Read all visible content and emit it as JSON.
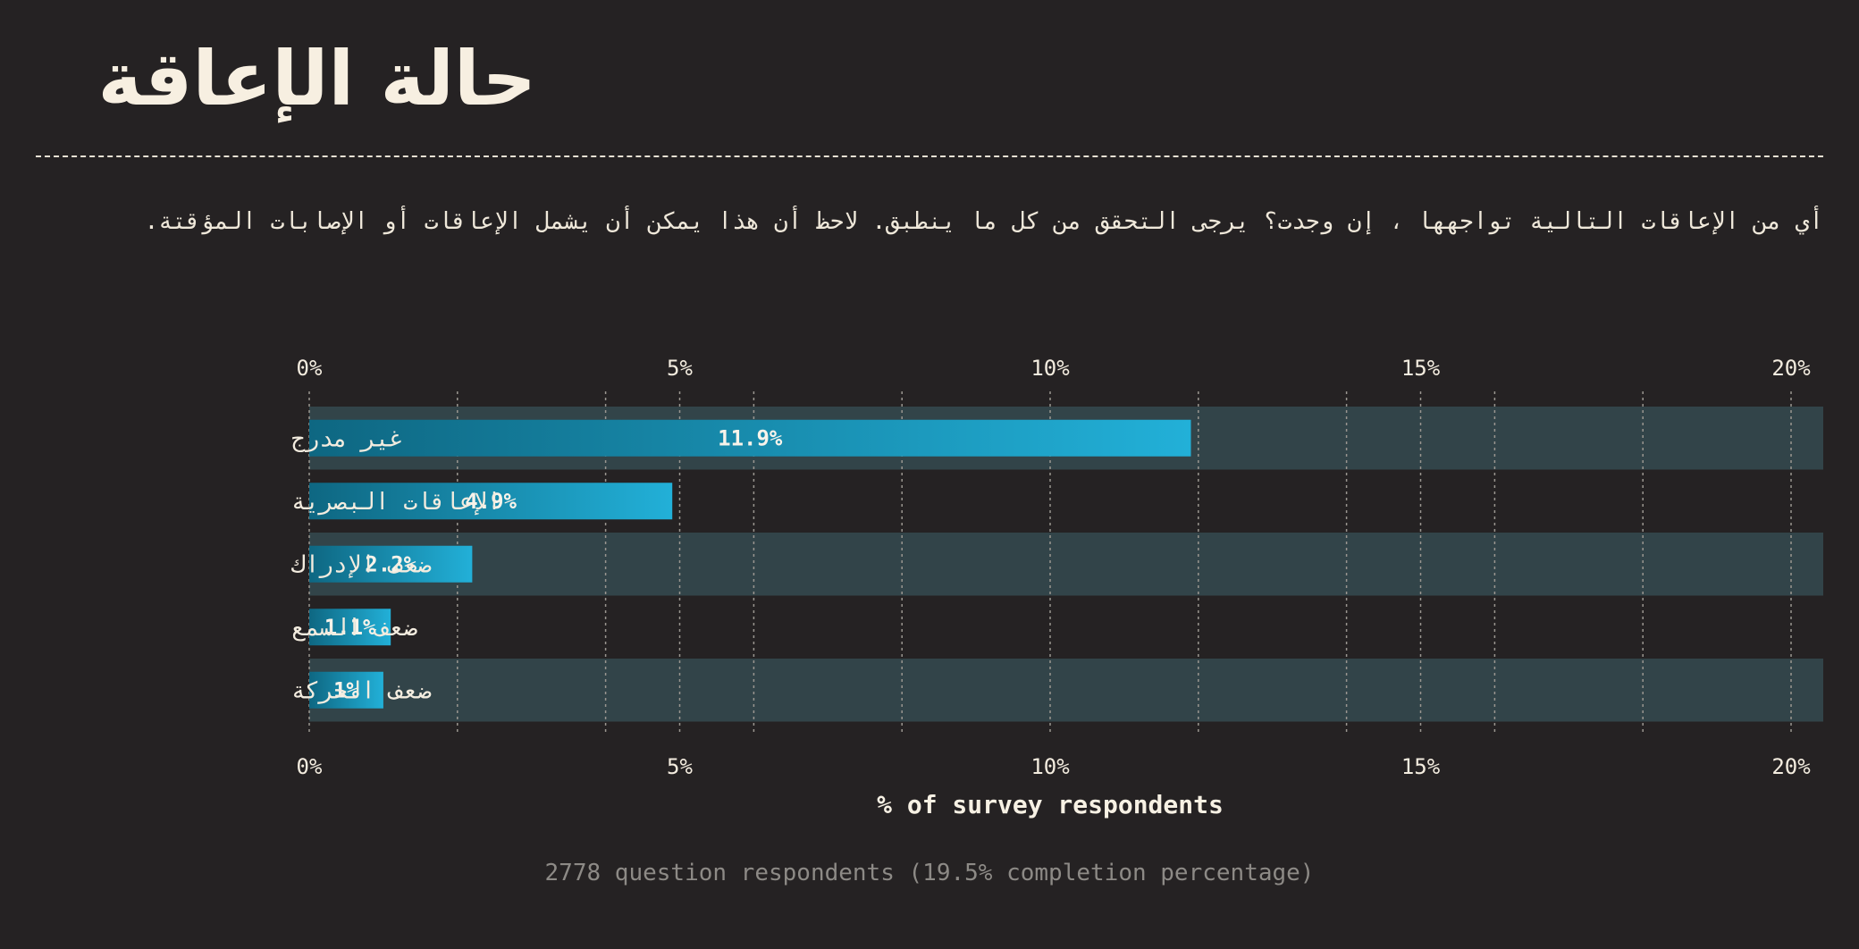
{
  "page": {
    "title": "حالة الإعاقة",
    "question": "أي من الإعاقات التالية تواجهها ، إن وجدت؟ يرجى التحقق من كل ما ينطبق. لاحظ أن هذا يمكن أن يشمل الإعاقات أو الإصابات المؤقتة.",
    "footnote": "2778 question respondents (19.5% completion percentage)"
  },
  "colors": {
    "background": "#252223",
    "band": "#324449",
    "bar_start": "#0e6782",
    "bar_end": "#22b0d8",
    "text": "#f3ecdf",
    "footnote": "#8d8a86"
  },
  "chart_data": {
    "type": "bar",
    "orientation": "horizontal",
    "categories": [
      "غير مدرج",
      "الإعاقات البصرية",
      "ضعف الإدراك",
      "ضعف السمع",
      "ضعف الحركة"
    ],
    "values": [
      11.9,
      4.9,
      2.2,
      1.1,
      1.0
    ],
    "value_labels": [
      "11.9%",
      "4.9%",
      "2.2%",
      "1.1%",
      "1%"
    ],
    "xlabel": "% of survey respondents",
    "ylabel": "",
    "xlim": [
      0,
      20.5
    ],
    "xticks": [
      0,
      5,
      10,
      15,
      20
    ],
    "xtick_labels": [
      "0%",
      "5%",
      "10%",
      "15%",
      "20%"
    ],
    "minor_gridlines": [
      2,
      4,
      6,
      8,
      12,
      14,
      16,
      18
    ],
    "grid": true,
    "alternating_bands": true
  }
}
